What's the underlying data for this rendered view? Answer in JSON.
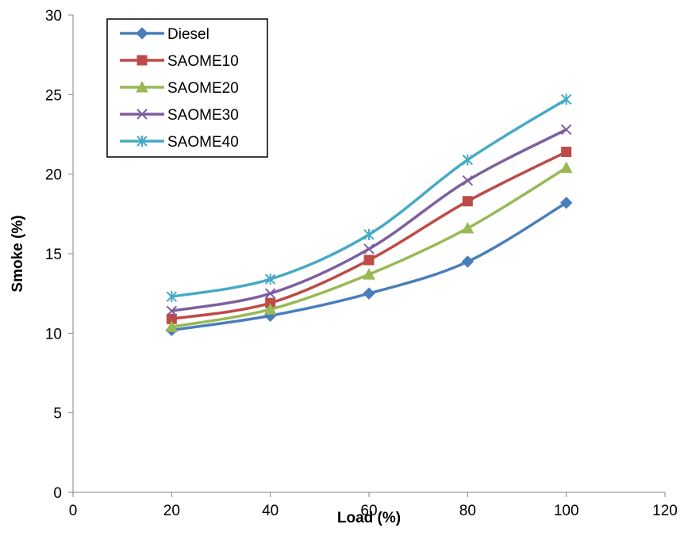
{
  "chart_data": {
    "type": "line",
    "title": "",
    "xlabel": "Load (%)",
    "ylabel": "Smoke (%)",
    "xlim": [
      0,
      120
    ],
    "ylim": [
      0,
      30
    ],
    "x_ticks": [
      0,
      20,
      40,
      60,
      80,
      100,
      120
    ],
    "y_ticks": [
      0,
      5,
      10,
      15,
      20,
      25,
      30
    ],
    "grid": false,
    "legend_position": "top-left",
    "x": [
      20,
      40,
      60,
      80,
      100
    ],
    "series": [
      {
        "name": "Diesel",
        "values": [
          10.2,
          11.1,
          12.5,
          14.5,
          18.2
        ],
        "color": "#4a7ebb",
        "marker": "diamond"
      },
      {
        "name": "SAOME10",
        "values": [
          10.9,
          11.9,
          14.6,
          18.3,
          21.4
        ],
        "color": "#be4b48",
        "marker": "square"
      },
      {
        "name": "SAOME20",
        "values": [
          10.4,
          11.5,
          13.7,
          16.6,
          20.4
        ],
        "color": "#98b954",
        "marker": "triangle"
      },
      {
        "name": "SAOME30",
        "values": [
          11.4,
          12.5,
          15.3,
          19.6,
          22.8
        ],
        "color": "#7d5fa0",
        "marker": "x"
      },
      {
        "name": "SAOME40",
        "values": [
          12.3,
          13.4,
          16.2,
          20.9,
          24.7
        ],
        "color": "#46aac5",
        "marker": "asterisk"
      }
    ]
  }
}
